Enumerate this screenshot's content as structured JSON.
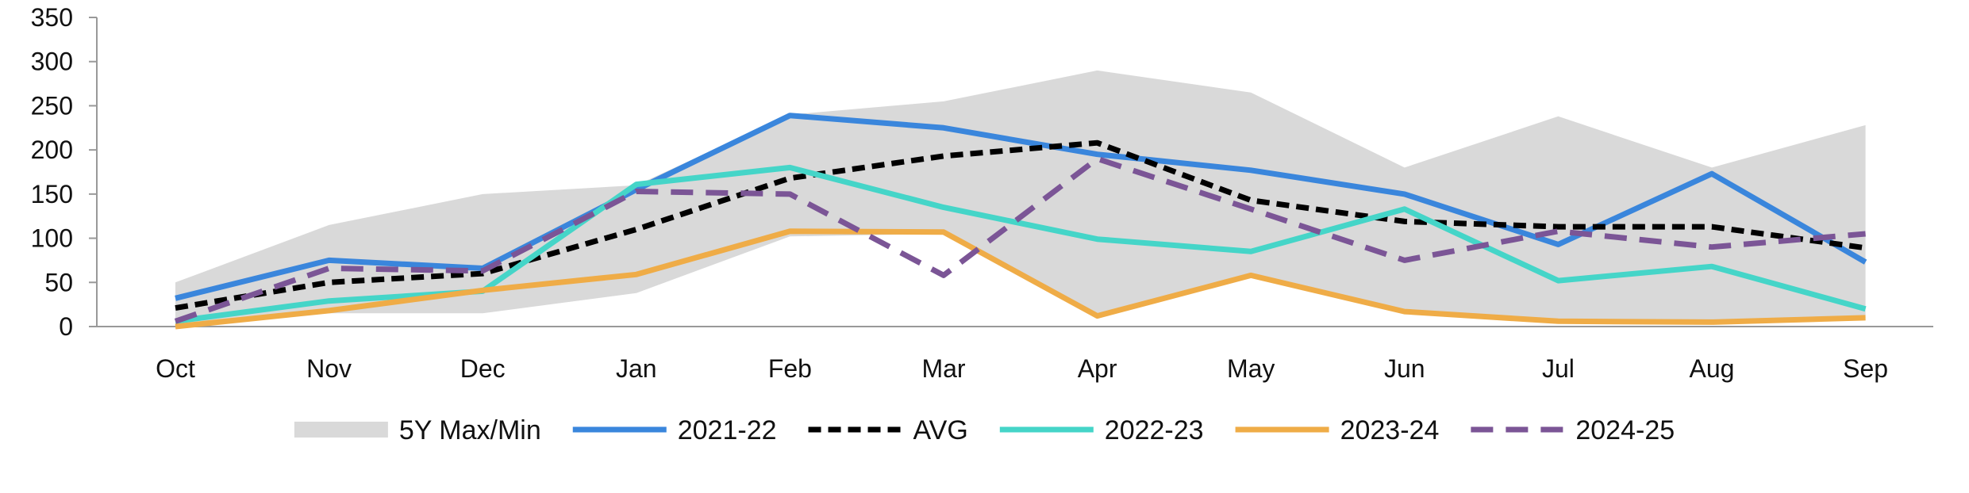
{
  "chart_data": {
    "type": "line",
    "title": "",
    "xlabel": "",
    "ylabel": "",
    "ylim": [
      0,
      350
    ],
    "yticks": [
      0,
      50,
      100,
      150,
      200,
      250,
      300,
      350
    ],
    "categories": [
      "Oct",
      "Nov",
      "Dec",
      "Jan",
      "Feb",
      "Mar",
      "Apr",
      "May",
      "Jun",
      "Jul",
      "Aug",
      "Sep"
    ],
    "legend_position": "bottom",
    "band": {
      "name": "5Y Max/Min",
      "color": "#d9d9d9",
      "max": [
        50,
        115,
        150,
        160,
        240,
        255,
        290,
        265,
        180,
        238,
        180,
        228
      ],
      "min": [
        0,
        15,
        15,
        38,
        102,
        105,
        10,
        58,
        16,
        6,
        4,
        10
      ]
    },
    "series": [
      {
        "name": "2021-22",
        "color": "#3a86dc",
        "dashed": false,
        "values": [
          32,
          75,
          66,
          155,
          239,
          225,
          195,
          177,
          150,
          93,
          173,
          73
        ]
      },
      {
        "name": "AVG",
        "color": "#000000",
        "dashed": true,
        "values": [
          21,
          50,
          60,
          110,
          168,
          193,
          208,
          143,
          119,
          113,
          113,
          89
        ]
      },
      {
        "name": "2022-23",
        "color": "#45d5c8",
        "dashed": false,
        "values": [
          6,
          29,
          40,
          161,
          180,
          135,
          99,
          85,
          133,
          52,
          68,
          20
        ]
      },
      {
        "name": "2023-24",
        "color": "#efac47",
        "dashed": false,
        "values": [
          0,
          18,
          41,
          59,
          108,
          107,
          12,
          58,
          17,
          6,
          5,
          10
        ]
      },
      {
        "name": "2024-25",
        "color": "#7b5596",
        "dashed": true,
        "values": [
          6,
          66,
          63,
          153,
          150,
          58,
          190,
          133,
          75,
          108,
          90,
          105
        ]
      }
    ]
  },
  "legend": {
    "items": [
      {
        "label": "5Y Max/Min",
        "kind": "band",
        "color": "#d9d9d9"
      },
      {
        "label": "2021-22",
        "kind": "line",
        "color": "#3a86dc",
        "dashed": false
      },
      {
        "label": "AVG",
        "kind": "line",
        "color": "#000000",
        "dashed": true
      },
      {
        "label": "2022-23",
        "kind": "line",
        "color": "#45d5c8",
        "dashed": false
      },
      {
        "label": "2023-24",
        "kind": "line",
        "color": "#efac47",
        "dashed": false
      },
      {
        "label": "2024-25",
        "kind": "line",
        "color": "#7b5596",
        "dashed": true
      }
    ]
  }
}
